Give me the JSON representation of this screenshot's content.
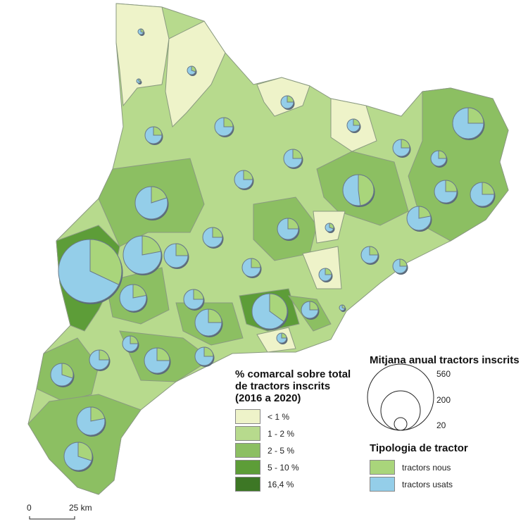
{
  "choropleth_legend": {
    "title": "% comarcal sobre total de tractors inscrits (2016 a 2020)",
    "classes": [
      {
        "label": "< 1 %",
        "color": "#eef3c9"
      },
      {
        "label": "1 - 2 %",
        "color": "#b7da8d"
      },
      {
        "label": "2 - 5 %",
        "color": "#8cbf62"
      },
      {
        "label": "5 - 10 %",
        "color": "#5d9d38"
      },
      {
        "label": "16,4 %",
        "color": "#3d7725"
      }
    ]
  },
  "size_legend": {
    "title": "Mitjana anual tractors inscrits",
    "values": [
      "560",
      "200",
      "20"
    ]
  },
  "type_legend": {
    "title": "Tipologia de tractor",
    "items": [
      {
        "label": "tractors nous",
        "color": "#a9d57b"
      },
      {
        "label": "tractors usats",
        "color": "#94cee9"
      }
    ]
  },
  "scale_bar": {
    "start": "0",
    "end": "25 km"
  },
  "colors": {
    "border": "#8a9a80",
    "pie_stroke": "#6a7a8a",
    "shadow": "#5a6a7a"
  }
}
